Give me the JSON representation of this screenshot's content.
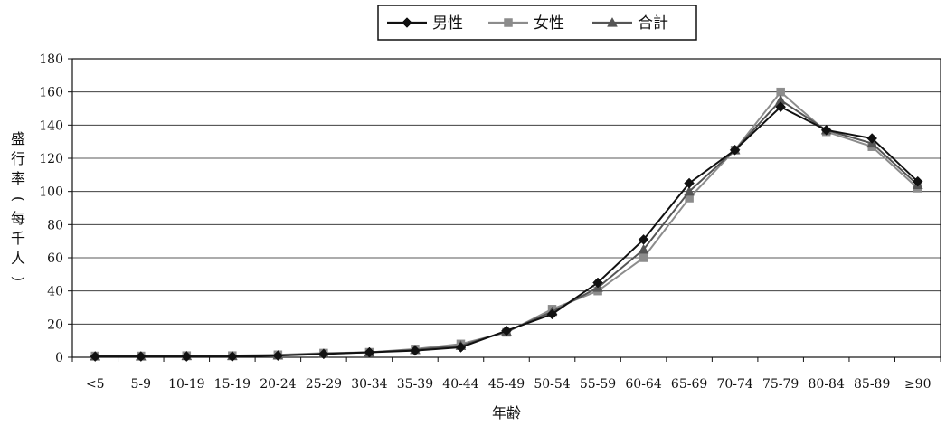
{
  "chart_data": {
    "type": "line",
    "xlabel": "年齢",
    "ylabel": "盛行率(每千人)",
    "ylim": [
      0,
      180
    ],
    "yticks": [
      0,
      20,
      40,
      60,
      80,
      100,
      120,
      140,
      160,
      180
    ],
    "grid": true,
    "legend_position": "top-center",
    "categories": [
      "<5",
      "5-9",
      "10-19",
      "15-19",
      "20-24",
      "25-29",
      "30-34",
      "35-39",
      "40-44",
      "45-49",
      "50-54",
      "55-59",
      "60-64",
      "65-69",
      "70-74",
      "75-79",
      "80-84",
      "85-89",
      "≥90"
    ],
    "series": [
      {
        "name": "男性",
        "color": "#111111",
        "marker": "diamond",
        "values": [
          0.5,
          0.5,
          0.5,
          0.5,
          1,
          2,
          3,
          4,
          6,
          16,
          26,
          45,
          71,
          105,
          125,
          151,
          137,
          132,
          106
        ]
      },
      {
        "name": "女性",
        "color": "#8c8c8c",
        "marker": "square",
        "values": [
          0.8,
          0.8,
          1,
          1,
          1.5,
          2.5,
          3,
          5,
          8,
          15,
          29,
          40,
          60,
          96,
          125,
          160,
          136,
          127,
          102
        ]
      },
      {
        "name": "合計",
        "color": "#555555",
        "marker": "triangle",
        "values": [
          0.6,
          0.6,
          0.8,
          0.8,
          1.2,
          2.2,
          3,
          4.5,
          7,
          15.5,
          27.5,
          42,
          65,
          100,
          125,
          155,
          137,
          129,
          104
        ]
      }
    ]
  }
}
